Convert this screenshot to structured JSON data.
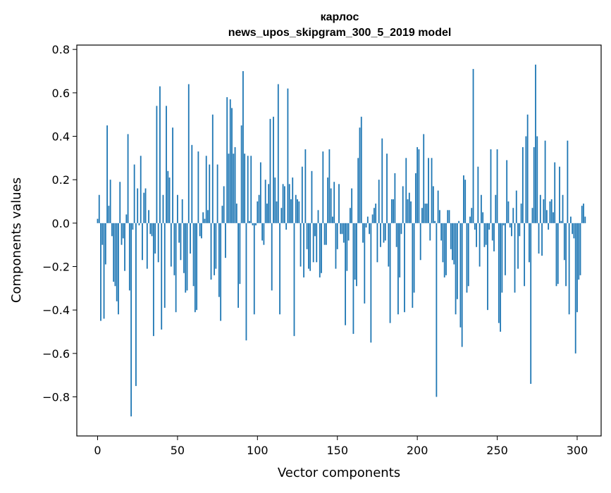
{
  "chart_data": {
    "type": "bar",
    "title_line1": "карлос",
    "title_line2": "news_upos_skipgram_300_5_2019 model",
    "xlabel": "Vector components",
    "ylabel": "Components values",
    "xlim": [
      -13,
      315
    ],
    "ylim": [
      -0.98,
      0.82
    ],
    "x_ticks": [
      0,
      50,
      100,
      150,
      200,
      250,
      300
    ],
    "y_ticks": [
      -0.8,
      -0.6,
      -0.4,
      -0.2,
      0.0,
      0.2,
      0.4,
      0.6,
      0.8
    ],
    "y_tick_labels": [
      "−0.8",
      "−0.6",
      "−0.4",
      "−0.2",
      "0.0",
      "0.2",
      "0.4",
      "0.6",
      "0.8"
    ],
    "x_tick_labels": [
      "0",
      "50",
      "100",
      "150",
      "200",
      "250",
      "300"
    ],
    "grid": false,
    "bar_color": "#1f77b4",
    "values": [
      0.02,
      0.13,
      -0.45,
      -0.1,
      -0.44,
      -0.19,
      0.45,
      0.08,
      0.2,
      -0.06,
      -0.27,
      -0.29,
      -0.36,
      -0.42,
      0.19,
      -0.1,
      -0.07,
      -0.22,
      0.04,
      0.41,
      -0.31,
      -0.89,
      -0.03,
      0.27,
      -0.75,
      0.16,
      -0.01,
      0.31,
      -0.17,
      0.14,
      0.16,
      -0.21,
      0.06,
      -0.05,
      -0.06,
      -0.52,
      -0.14,
      0.54,
      -0.18,
      0.63,
      -0.49,
      0.13,
      -0.39,
      0.54,
      0.24,
      0.21,
      -0.2,
      0.44,
      -0.24,
      -0.41,
      0.13,
      -0.09,
      -0.17,
      0.11,
      -0.23,
      -0.32,
      -0.31,
      0.64,
      -0.14,
      0.36,
      -0.29,
      -0.41,
      -0.4,
      0.33,
      -0.06,
      -0.07,
      0.05,
      0.02,
      0.31,
      0.06,
      0.27,
      -0.26,
      0.5,
      -0.24,
      -0.21,
      0.27,
      -0.34,
      -0.45,
      0.08,
      0.17,
      -0.16,
      0.58,
      0.32,
      0.57,
      0.53,
      0.32,
      0.35,
      0.09,
      -0.39,
      -0.28,
      0.45,
      0.7,
      0.32,
      -0.54,
      0.31,
      0.01,
      0.31,
      -0.01,
      -0.42,
      -0.01,
      0.1,
      0.13,
      0.28,
      -0.08,
      -0.1,
      0.2,
      0.09,
      0.18,
      0.48,
      -0.31,
      0.49,
      0.21,
      0.1,
      0.64,
      -0.42,
      0.07,
      0.18,
      0.17,
      -0.03,
      0.62,
      0.18,
      0.11,
      0.21,
      -0.52,
      0.13,
      0.11,
      0.1,
      -0.2,
      0.26,
      -0.25,
      0.34,
      -0.12,
      -0.21,
      -0.22,
      0.24,
      -0.18,
      -0.06,
      -0.18,
      0.06,
      -0.25,
      -0.23,
      0.33,
      -0.1,
      -0.1,
      0.21,
      0.34,
      0.16,
      0.03,
      0.19,
      -0.21,
      -0.12,
      0.18,
      -0.05,
      -0.05,
      -0.09,
      -0.47,
      -0.22,
      -0.08,
      0.07,
      0.16,
      -0.51,
      -0.26,
      -0.29,
      0.3,
      0.44,
      0.49,
      -0.09,
      -0.37,
      -0.02,
      0.03,
      -0.05,
      -0.55,
      0.04,
      0.07,
      0.09,
      -0.18,
      0.2,
      -0.11,
      0.39,
      -0.09,
      -0.08,
      0.32,
      -0.2,
      -0.46,
      0.11,
      0.11,
      0.23,
      -0.11,
      -0.42,
      -0.25,
      -0.05,
      0.17,
      -0.41,
      0.3,
      0.11,
      0.14,
      0.1,
      -0.39,
      -0.32,
      0.23,
      0.35,
      0.34,
      -0.17,
      0.07,
      0.41,
      0.09,
      0.09,
      0.3,
      -0.08,
      0.3,
      0.17,
      0.01,
      -0.8,
      0.15,
      0.06,
      -0.08,
      -0.18,
      -0.25,
      -0.24,
      0.06,
      0.06,
      -0.12,
      -0.17,
      -0.19,
      -0.42,
      -0.35,
      0.01,
      -0.48,
      -0.57,
      0.22,
      0.2,
      -0.32,
      -0.29,
      0.03,
      0.07,
      0.71,
      -0.03,
      -0.11,
      0.26,
      -0.2,
      0.13,
      0.05,
      -0.11,
      -0.1,
      -0.4,
      -0.03,
      0.34,
      -0.08,
      -0.13,
      0.13,
      0.34,
      -0.46,
      -0.5,
      -0.32,
      -0.01,
      -0.24,
      0.29,
      0.1,
      -0.02,
      -0.06,
      0.07,
      -0.32,
      0.15,
      -0.21,
      -0.06,
      0.09,
      0.35,
      -0.29,
      0.4,
      0.5,
      -0.18,
      -0.74,
      0.07,
      0.35,
      0.73,
      0.4,
      -0.14,
      0.13,
      -0.15,
      0.11,
      0.38,
      0.06,
      -0.03,
      0.1,
      0.11,
      0.05,
      0.28,
      -0.29,
      -0.28,
      0.26,
      0.01,
      0.13,
      -0.17,
      -0.29,
      0.38,
      -0.42,
      0.03,
      -0.05,
      -0.07,
      -0.6,
      -0.41,
      -0.26,
      -0.24,
      0.08,
      0.09,
      0.03
    ]
  }
}
